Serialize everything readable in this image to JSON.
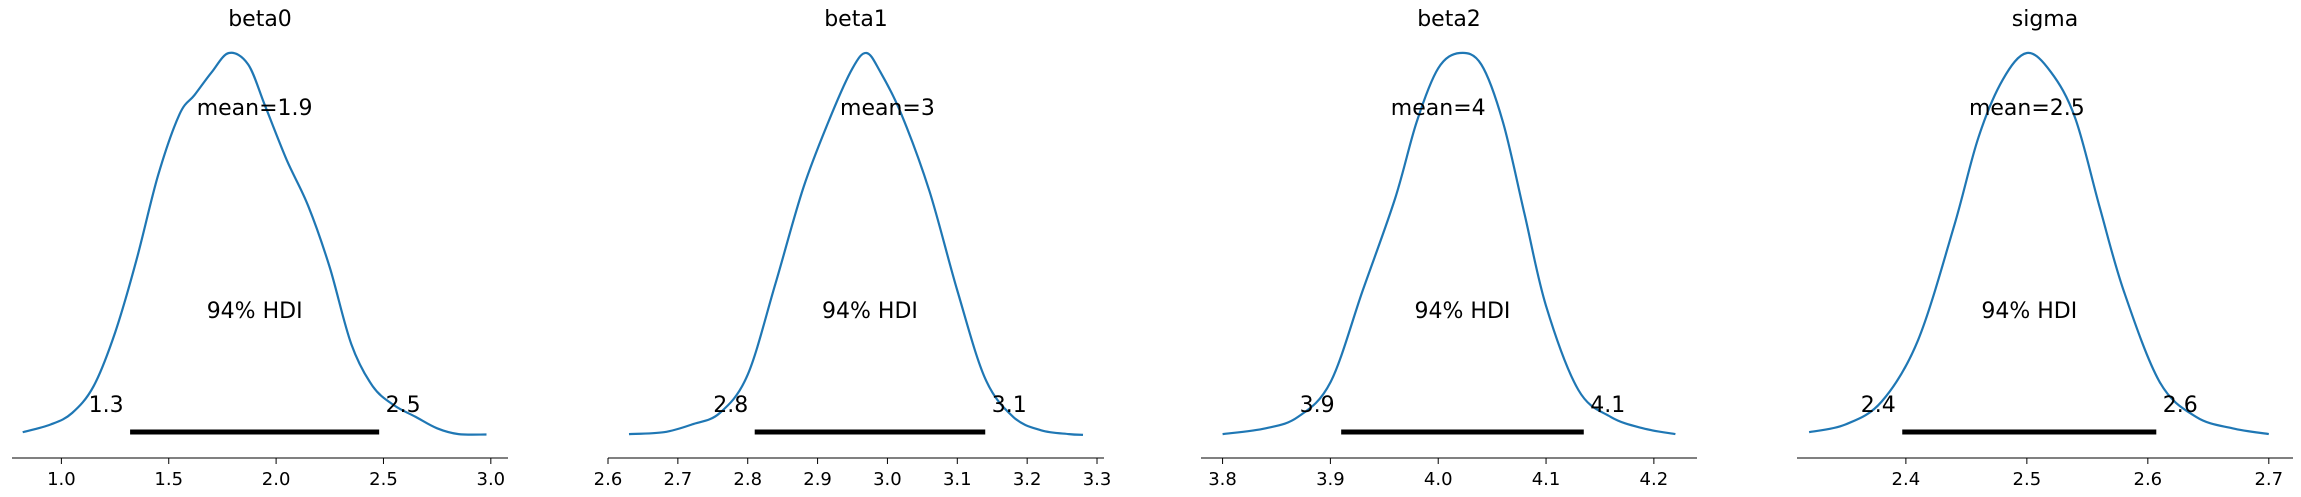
{
  "chart_data": [
    {
      "type": "density",
      "title": "beta0",
      "mean": 1.9,
      "mean_label": "mean=1.9",
      "hdi_label": "94% HDI",
      "hdi": [
        1.3,
        2.5
      ],
      "hdi_text": [
        "1.3",
        "2.5"
      ],
      "hdi_exact": [
        1.32,
        2.48
      ],
      "xlim": [
        0.77,
        3.08
      ],
      "xticks": [
        1.0,
        1.5,
        2.0,
        2.5,
        3.0
      ],
      "xtick_labels": [
        "1.0",
        "1.5",
        "2.0",
        "2.5",
        "3.0"
      ],
      "density": {
        "x": [
          0.82,
          0.95,
          1.05,
          1.15,
          1.25,
          1.35,
          1.45,
          1.55,
          1.62,
          1.7,
          1.78,
          1.87,
          1.95,
          2.05,
          2.15,
          2.25,
          2.35,
          2.45,
          2.55,
          2.65,
          2.75,
          2.85,
          2.98
        ],
        "y": [
          0.01,
          0.03,
          0.06,
          0.13,
          0.27,
          0.46,
          0.68,
          0.84,
          0.89,
          0.95,
          1.0,
          0.97,
          0.86,
          0.72,
          0.6,
          0.44,
          0.24,
          0.13,
          0.08,
          0.05,
          0.02,
          0.005,
          0.004
        ]
      }
    },
    {
      "type": "density",
      "title": "beta1",
      "mean": 3,
      "mean_label": "mean=3",
      "hdi_label": "94% HDI",
      "hdi": [
        2.8,
        3.1
      ],
      "hdi_text": [
        "2.8",
        "3.1"
      ],
      "hdi_exact": [
        2.81,
        3.14
      ],
      "xlim": [
        2.6,
        3.31
      ],
      "xticks": [
        2.6,
        2.7,
        2.8,
        2.9,
        3.0,
        3.1,
        3.2,
        3.3
      ],
      "xtick_labels": [
        "2.6",
        "2.7",
        "2.8",
        "2.9",
        "3.0",
        "3.1",
        "3.2",
        "3.3"
      ],
      "density": {
        "x": [
          2.63,
          2.68,
          2.72,
          2.76,
          2.8,
          2.84,
          2.88,
          2.92,
          2.95,
          2.97,
          2.99,
          3.02,
          3.06,
          3.1,
          3.14,
          3.18,
          3.22,
          3.26,
          3.28
        ],
        "y": [
          0.005,
          0.01,
          0.03,
          0.06,
          0.16,
          0.4,
          0.65,
          0.84,
          0.96,
          1.0,
          0.95,
          0.84,
          0.64,
          0.38,
          0.15,
          0.05,
          0.015,
          0.005,
          0.003
        ]
      }
    },
    {
      "type": "density",
      "title": "beta2",
      "mean": 4,
      "mean_label": "mean=4",
      "hdi_label": "94% HDI",
      "hdi": [
        3.9,
        4.1
      ],
      "hdi_text": [
        "3.9",
        "4.1"
      ],
      "hdi_exact": [
        3.91,
        4.135
      ],
      "xlim": [
        3.78,
        4.24
      ],
      "xticks": [
        3.8,
        3.9,
        4.0,
        4.1,
        4.2
      ],
      "xtick_labels": [
        "3.8",
        "3.9",
        "4.0",
        "4.1",
        "4.2"
      ],
      "density": {
        "x": [
          3.8,
          3.84,
          3.87,
          3.9,
          3.93,
          3.96,
          3.98,
          4.0,
          4.02,
          4.04,
          4.06,
          4.08,
          4.1,
          4.13,
          4.16,
          4.19,
          4.22
        ],
        "y": [
          0.005,
          0.02,
          0.05,
          0.14,
          0.38,
          0.62,
          0.82,
          0.96,
          1.0,
          0.97,
          0.82,
          0.58,
          0.34,
          0.12,
          0.05,
          0.02,
          0.005
        ]
      }
    },
    {
      "type": "density",
      "title": "sigma",
      "mean": 2.5,
      "mean_label": "mean=2.5",
      "hdi_label": "94% HDI",
      "hdi": [
        2.4,
        2.6
      ],
      "hdi_text": [
        "2.4",
        "2.6"
      ],
      "hdi_exact": [
        2.397,
        2.607
      ],
      "xlim": [
        2.31,
        2.72
      ],
      "xticks": [
        2.4,
        2.5,
        2.6,
        2.7
      ],
      "xtick_labels": [
        "2.4",
        "2.5",
        "2.6",
        "2.7"
      ],
      "density": {
        "x": [
          2.32,
          2.35,
          2.38,
          2.41,
          2.44,
          2.46,
          2.48,
          2.5,
          2.52,
          2.54,
          2.56,
          2.58,
          2.61,
          2.64,
          2.67,
          2.7
        ],
        "y": [
          0.01,
          0.03,
          0.09,
          0.25,
          0.55,
          0.78,
          0.93,
          1.0,
          0.95,
          0.83,
          0.6,
          0.38,
          0.14,
          0.05,
          0.02,
          0.005
        ]
      }
    }
  ]
}
